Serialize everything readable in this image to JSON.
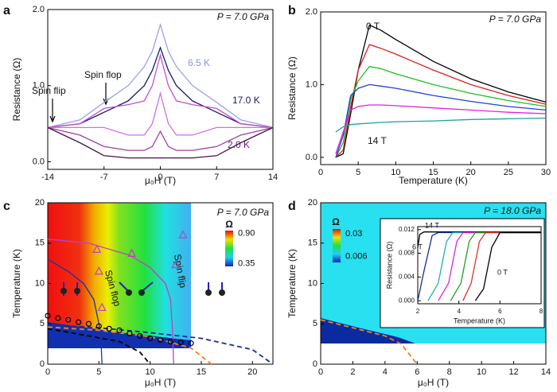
{
  "chart_data": [
    {
      "type": "line",
      "panel": "a",
      "pressure": "P = 7.0 GPa",
      "xlabel": "μ₀H (T)",
      "ylabel": "Resistance (Ω)",
      "annotations": [
        "Spin flip",
        "Spin flop"
      ],
      "xlim": [
        -14,
        14
      ],
      "xticks": [
        -14,
        -7,
        0,
        7,
        14
      ],
      "ylim": [
        -0.1,
        2.0
      ],
      "yticks": [
        {
          "value": 0,
          "label": "0.0"
        },
        {
          "value": 1,
          "label": "1.0"
        },
        {
          "value": 2,
          "label": "2.0"
        }
      ],
      "x": [
        -14,
        -10,
        -7,
        -4,
        -2,
        -1,
        0,
        1,
        2,
        4,
        7,
        10,
        14
      ],
      "series": [
        {
          "name": "6.5 K",
          "color": "#9aa0ee",
          "values": [
            0.45,
            0.55,
            0.78,
            1.0,
            1.25,
            1.45,
            1.8,
            1.45,
            1.25,
            1.0,
            0.78,
            0.55,
            0.45
          ]
        },
        {
          "name": "17.0 K",
          "color": "#1a1a70",
          "values": [
            0.45,
            0.5,
            0.65,
            0.8,
            1.0,
            1.2,
            1.5,
            1.2,
            1.0,
            0.8,
            0.65,
            0.5,
            0.45
          ]
        },
        {
          "color": "#c050d0",
          "values": [
            0.45,
            0.5,
            0.7,
            0.75,
            0.8,
            1.0,
            1.4,
            1.0,
            0.8,
            0.75,
            0.7,
            0.5,
            0.45
          ]
        },
        {
          "color": "#d070e0",
          "values": [
            0.45,
            0.45,
            0.45,
            0.35,
            0.35,
            0.5,
            0.9,
            0.5,
            0.35,
            0.35,
            0.45,
            0.45,
            0.45
          ]
        },
        {
          "color": "#a040a0",
          "values": [
            0.45,
            0.35,
            0.2,
            0.15,
            0.15,
            0.2,
            0.4,
            0.2,
            0.15,
            0.15,
            0.2,
            0.35,
            0.45
          ]
        },
        {
          "name": "2.0 K",
          "color": "#4a1050",
          "values": [
            0.45,
            0.25,
            0.08,
            0.05,
            0.05,
            0.05,
            0.05,
            0.05,
            0.05,
            0.05,
            0.08,
            0.25,
            0.45
          ]
        }
      ]
    },
    {
      "type": "line",
      "panel": "b",
      "pressure": "P = 7.0 GPa",
      "xlabel": "Temperature (K)",
      "ylabel": "Resistance (Ω)",
      "xlim": [
        0,
        30
      ],
      "xticks": [
        0,
        5,
        10,
        15,
        20,
        25,
        30
      ],
      "ylim": [
        -0.1,
        2.0
      ],
      "yticks": [
        {
          "value": 0,
          "label": "0.0"
        },
        {
          "value": 1,
          "label": "1.0"
        },
        {
          "value": 2,
          "label": "2.0"
        }
      ],
      "x": [
        2,
        3,
        4,
        5,
        6.5,
        8,
        10,
        15,
        20,
        25,
        30
      ],
      "series": [
        {
          "name": "0 T",
          "color": "#000000",
          "values": [
            0.0,
            0.05,
            0.6,
            1.2,
            1.82,
            1.75,
            1.62,
            1.32,
            1.08,
            0.9,
            0.76
          ]
        },
        {
          "color": "#e02020",
          "values": [
            0.0,
            0.1,
            0.7,
            1.2,
            1.55,
            1.5,
            1.42,
            1.2,
            1.0,
            0.85,
            0.73
          ]
        },
        {
          "color": "#20c020",
          "values": [
            0.0,
            0.2,
            0.8,
            1.05,
            1.25,
            1.22,
            1.15,
            1.0,
            0.88,
            0.78,
            0.7
          ]
        },
        {
          "color": "#2040e0",
          "values": [
            0.0,
            0.3,
            0.85,
            0.95,
            1.0,
            0.98,
            0.95,
            0.85,
            0.77,
            0.7,
            0.65
          ]
        },
        {
          "color": "#e020e0",
          "values": [
            0.05,
            0.35,
            0.65,
            0.7,
            0.72,
            0.72,
            0.71,
            0.68,
            0.65,
            0.62,
            0.6
          ]
        },
        {
          "name": "14 T",
          "color": "#20a0a0",
          "values": [
            0.35,
            0.42,
            0.45,
            0.46,
            0.47,
            0.48,
            0.49,
            0.5,
            0.52,
            0.53,
            0.54
          ]
        }
      ]
    },
    {
      "type": "line",
      "panel": "c",
      "pressure": "P = 7.0 GPa",
      "xlabel": "μ₀H (T)",
      "ylabel": "Temperature (K)",
      "annotations": [
        "Spin flop",
        "Spin flip"
      ],
      "colorbar_title": "Ω",
      "colorbar_lim": [
        0.3,
        0.95
      ],
      "colorbar_ticks": [
        {
          "value": 0.9,
          "label": "0.90"
        },
        {
          "value": 0.35,
          "label": "0.35"
        }
      ],
      "xlim": [
        0,
        22
      ],
      "xticks": [
        0,
        5,
        10,
        15,
        20
      ],
      "ylim": [
        0,
        20
      ],
      "yticks": [
        0,
        5,
        10,
        15,
        20
      ],
      "series": [
        {
          "color": "#c040c0",
          "x": [
            0,
            4,
            8,
            10,
            11.5,
            12,
            12.2,
            12.3
          ],
          "values": [
            15.5,
            15,
            13.5,
            12,
            10,
            8,
            4,
            0
          ]
        },
        {
          "color": "#2030a0",
          "x": [
            0,
            2,
            3.5,
            4.5,
            5,
            5.2,
            5.3
          ],
          "values": [
            13,
            11.5,
            10,
            8,
            5,
            3,
            0
          ]
        },
        {
          "color": "#c040c0",
          "marker": "triangle",
          "x": [
            4.8,
            5.0,
            5.3,
            8.2,
            12.5,
            13.2
          ],
          "values": [
            14.2,
            11.5,
            7,
            13.7,
            12.3,
            16
          ]
        },
        {
          "color": "#000000",
          "dash": true,
          "x": [
            0,
            4,
            7,
            9,
            10
          ],
          "values": [
            4.4,
            3.5,
            2.8,
            1.5,
            0
          ]
        },
        {
          "color": "#f08020",
          "dash": true,
          "x": [
            0,
            5,
            10,
            14,
            16
          ],
          "values": [
            4.6,
            4.2,
            3.4,
            2,
            0
          ]
        },
        {
          "color": "#1a2aa0",
          "dash": true,
          "x": [
            0,
            5,
            10,
            15,
            20,
            22
          ],
          "values": [
            4.9,
            4.5,
            3.9,
            3.2,
            1.8,
            0
          ]
        },
        {
          "color": "#000000",
          "marker": "circle",
          "x": [
            0,
            1,
            2,
            3,
            4,
            5,
            6,
            7,
            8,
            9,
            10,
            11,
            12,
            13,
            14
          ],
          "values": [
            6,
            5.7,
            5.5,
            5.2,
            5,
            4.7,
            4.4,
            4.2,
            3.8,
            3.5,
            3.2,
            3.0,
            2.8,
            2.7,
            2.6
          ]
        }
      ]
    },
    {
      "type": "line",
      "panel": "d",
      "pressure": "P = 18.0 GPa",
      "xlabel": "μ₀H (T)",
      "ylabel": "Temperature (K)",
      "colorbar_title": "Ω",
      "colorbar_lim": [
        0.0,
        0.035
      ],
      "colorbar_ticks": [
        {
          "value": 0.03,
          "label": "0.03"
        },
        {
          "value": 0.006,
          "label": "0.006"
        }
      ],
      "xlim": [
        0,
        14
      ],
      "xticks": [
        0,
        2,
        4,
        6,
        8,
        10,
        12,
        14
      ],
      "ylim": [
        0,
        20
      ],
      "yticks": [
        0,
        5,
        10,
        15,
        20
      ],
      "series": [
        {
          "color": "#f08020",
          "dash": true,
          "x": [
            0,
            2,
            4,
            5,
            6
          ],
          "values": [
            5.5,
            4.5,
            3.5,
            2.5,
            0
          ]
        }
      ]
    },
    {
      "type": "line",
      "xlabel": "Temperature (K)",
      "ylabel": "Resistance (Ω)",
      "xlim": [
        2,
        8
      ],
      "xticks": [
        2,
        4,
        6,
        8
      ],
      "ylim": [
        -0.0005,
        0.0125
      ],
      "yticks": [
        {
          "value": 0,
          "label": "0.000"
        },
        {
          "value": 0.004,
          "label": "0.004"
        },
        {
          "value": 0.008,
          "label": "0.008"
        },
        {
          "value": 0.012,
          "label": "0.012"
        }
      ],
      "series": [
        {
          "name": "14 T",
          "color": "#000000",
          "x": [
            2,
            2.1,
            2.3,
            8
          ],
          "values": [
            0.009,
            0.0112,
            0.0116,
            0.0116
          ]
        },
        {
          "name": "6 T",
          "color": "#1a2a90",
          "x": [
            2,
            2.3,
            2.7,
            3.0,
            8
          ],
          "values": [
            0.0,
            0.005,
            0.011,
            0.0115,
            0.0115
          ]
        },
        {
          "color": "#20b0b0",
          "x": [
            2.5,
            3.0,
            3.4,
            3.7,
            8
          ],
          "values": [
            0.0,
            0.003,
            0.01,
            0.0115,
            0.0115
          ]
        },
        {
          "color": "#e020e0",
          "x": [
            3.0,
            3.5,
            3.9,
            4.2,
            8
          ],
          "values": [
            0.0,
            0.003,
            0.01,
            0.0115,
            0.0115
          ]
        },
        {
          "color": "#20a020",
          "x": [
            3.6,
            4.1,
            4.5,
            4.8,
            8
          ],
          "values": [
            0.0,
            0.003,
            0.01,
            0.0115,
            0.0115
          ]
        },
        {
          "color": "#e03030",
          "x": [
            4.2,
            4.6,
            5.0,
            5.3,
            8
          ],
          "values": [
            0.0,
            0.003,
            0.01,
            0.0115,
            0.0115
          ]
        },
        {
          "name": "0 T",
          "color": "#000000",
          "x": [
            4.8,
            5.2,
            5.6,
            6.0,
            8
          ],
          "values": [
            0.0,
            0.002,
            0.009,
            0.0115,
            0.0115
          ]
        }
      ]
    }
  ]
}
